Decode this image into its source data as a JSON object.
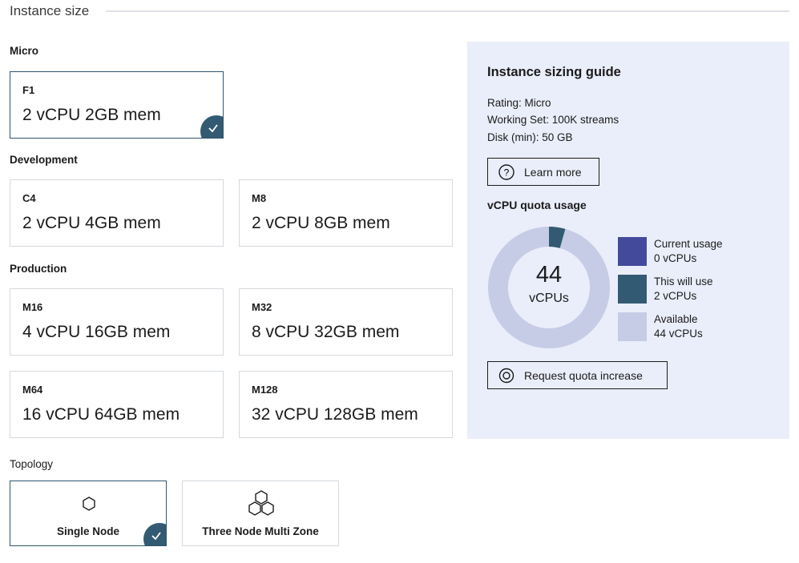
{
  "header": {
    "title": "Instance size"
  },
  "sections": [
    {
      "label": "Micro"
    },
    {
      "label": "Development"
    },
    {
      "label": "Production"
    }
  ],
  "instances": [
    {
      "code": "F1",
      "spec": "2 vCPU 2GB mem",
      "selected": true
    },
    {
      "code": "C4",
      "spec": "2 vCPU 4GB mem",
      "selected": false
    },
    {
      "code": "M8",
      "spec": "2 vCPU 8GB mem",
      "selected": false
    },
    {
      "code": "M16",
      "spec": "4 vCPU 16GB mem",
      "selected": false
    },
    {
      "code": "M32",
      "spec": "8 vCPU 32GB mem",
      "selected": false
    },
    {
      "code": "M64",
      "spec": "16 vCPU 64GB mem",
      "selected": false
    },
    {
      "code": "M128",
      "spec": "32 vCPU 128GB mem",
      "selected": false
    }
  ],
  "topology": {
    "label": "Topology",
    "options": [
      {
        "label": "Single Node",
        "icon": "hexagon-icon",
        "selected": true
      },
      {
        "label": "Three Node Multi Zone",
        "icon": "three-hexagons-icon",
        "selected": false
      }
    ]
  },
  "guide": {
    "title": "Instance sizing guide",
    "rating": "Rating: Micro",
    "working_set": "Working Set: 100K streams",
    "disk": "Disk (min): 50 GB",
    "learn_more": "Learn more",
    "quota_title": "vCPU quota usage",
    "center_value": "44",
    "center_unit": "vCPUs",
    "request_button": "Request quota increase"
  },
  "chart_data": {
    "type": "pie",
    "series": [
      {
        "name": "Current usage",
        "label": "0 vCPUs",
        "value": 0,
        "color": "#434a9c"
      },
      {
        "name": "This will use",
        "label": "2 vCPUs",
        "value": 2,
        "color": "#335a73"
      },
      {
        "name": "Available",
        "label": "44 vCPUs",
        "value": 44,
        "color": "#c7cce6"
      }
    ]
  },
  "colors": {
    "accent": "#335a73",
    "panel_bg": "#eaeefa"
  }
}
